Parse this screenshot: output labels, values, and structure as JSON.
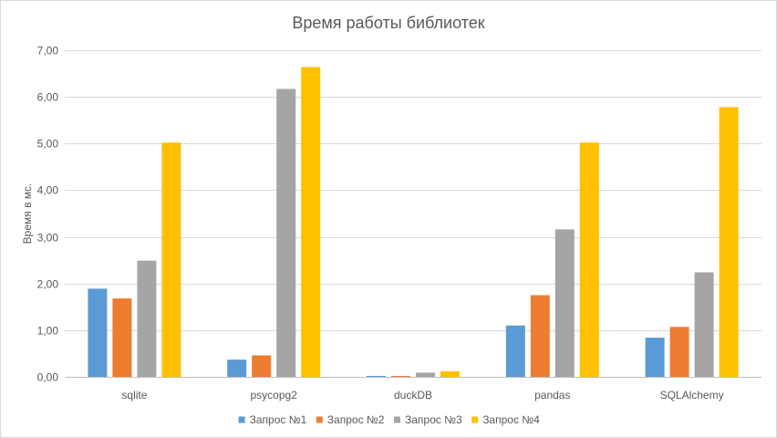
{
  "chart_data": {
    "type": "bar",
    "title": "Время работы библиотек",
    "xlabel": "",
    "ylabel": "Время в мс.",
    "ylim": [
      0,
      7
    ],
    "yticks": [
      0,
      1,
      2,
      3,
      4,
      5,
      6,
      7
    ],
    "ytick_labels": [
      "0,00",
      "1,00",
      "2,00",
      "3,00",
      "4,00",
      "5,00",
      "6,00",
      "7,00"
    ],
    "grid": true,
    "legend_position": "bottom",
    "categories": [
      "sqlite",
      "psycopg2",
      "duckDB",
      "pandas",
      "SQLAlchemy"
    ],
    "series": [
      {
        "name": "Запрос №1",
        "color": "#5b9bd5",
        "values": [
          1.89,
          0.37,
          0.02,
          1.1,
          0.84
        ]
      },
      {
        "name": "Запрос №2",
        "color": "#ed7d31",
        "values": [
          1.68,
          0.46,
          0.02,
          1.75,
          1.07
        ]
      },
      {
        "name": "Запрос №3",
        "color": "#a5a5a5",
        "values": [
          2.49,
          6.17,
          0.09,
          3.16,
          2.24
        ]
      },
      {
        "name": "Запрос №4",
        "color": "#ffc000",
        "values": [
          5.02,
          6.64,
          0.12,
          5.02,
          5.78
        ]
      }
    ]
  }
}
